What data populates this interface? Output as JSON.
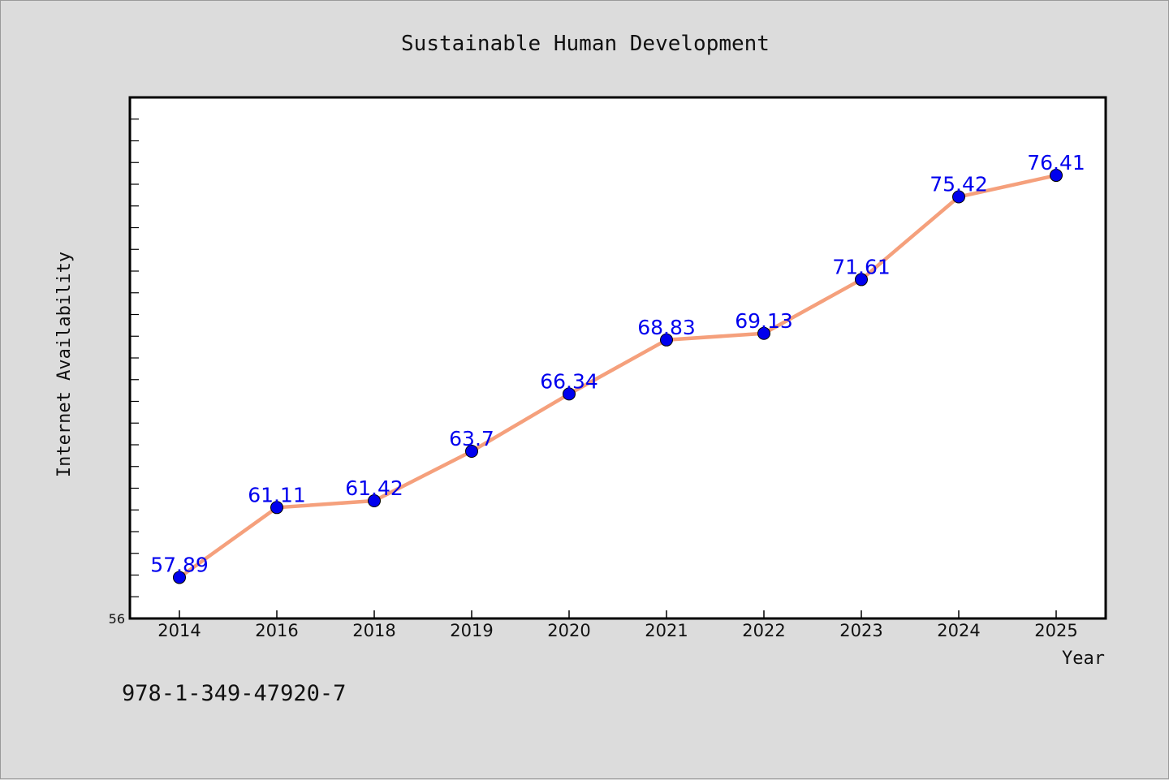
{
  "chart_data": {
    "type": "line",
    "title": "Sustainable Human Development",
    "xlabel": "Year",
    "ylabel": "Internet Availability",
    "categories": [
      "2014",
      "2016",
      "2018",
      "2019",
      "2020",
      "2021",
      "2022",
      "2023",
      "2024",
      "2025"
    ],
    "series": [
      {
        "values": [
          57.89,
          61.11,
          61.42,
          63.7,
          66.34,
          68.83,
          69.13,
          71.61,
          75.42,
          76.41
        ],
        "line_color": "#f5a07c",
        "marker_color": "#0000ee"
      }
    ],
    "data_labels": [
      "57.89",
      "61.11",
      "61.42",
      "63.7",
      "66.34",
      "68.83",
      "69.13",
      "71.61",
      "75.42",
      "76.41"
    ],
    "ylim": [
      56,
      80
    ],
    "y_tick_labels": [
      "56"
    ],
    "y_minor_step": 1,
    "grid": false,
    "legend": "none"
  },
  "footer": {
    "isbn": "978-1-349-47920-7"
  }
}
